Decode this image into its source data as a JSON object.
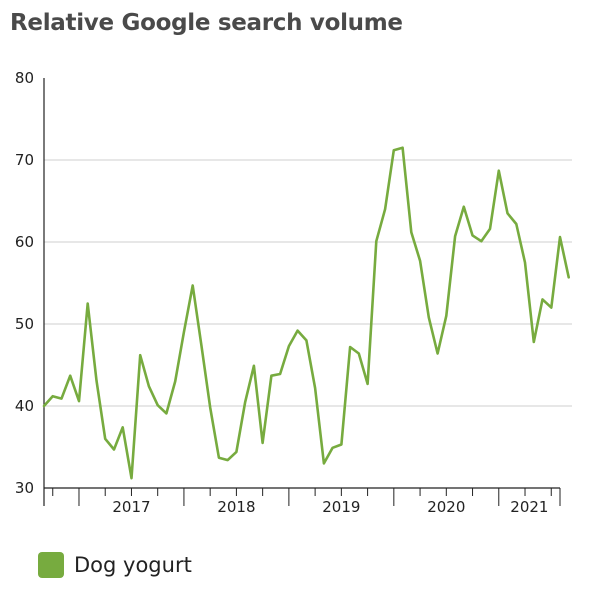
{
  "chart_data": {
    "type": "line",
    "title": "Relative Google search volume",
    "xlabel": "",
    "ylabel": "",
    "ylim": [
      30,
      80
    ],
    "yticks": [
      30,
      40,
      50,
      60,
      70,
      80
    ],
    "year_labels": [
      "2017",
      "2018",
      "2019",
      "2020",
      "2021"
    ],
    "x_start": "2016-09",
    "x_end": "2021-08",
    "grid": "horizontal",
    "legend_position": "bottom-left",
    "series": [
      {
        "name": "Dog yogurt",
        "color": "#77ab3f",
        "values": [
          40,
          41.2,
          40.9,
          43.7,
          40.6,
          52.5,
          43.1,
          36,
          34.7,
          37.4,
          31.2,
          46.2,
          42.4,
          40.1,
          39.1,
          43,
          49,
          54.7,
          47.4,
          39.8,
          33.7,
          33.4,
          34.4,
          40.5,
          44.9,
          35.5,
          43.7,
          43.9,
          47.3,
          49.2,
          48,
          42.2,
          33,
          34.9,
          35.3,
          47.2,
          46.4,
          42.7,
          60.1,
          64,
          71.2,
          71.5,
          61.2,
          57.7,
          50.8,
          46.4,
          51,
          60.7,
          64.3,
          60.8,
          60.1,
          61.6,
          68.7,
          63.5,
          62.2,
          57.5,
          47.8,
          53,
          52,
          60.6,
          55.7
        ]
      }
    ]
  }
}
